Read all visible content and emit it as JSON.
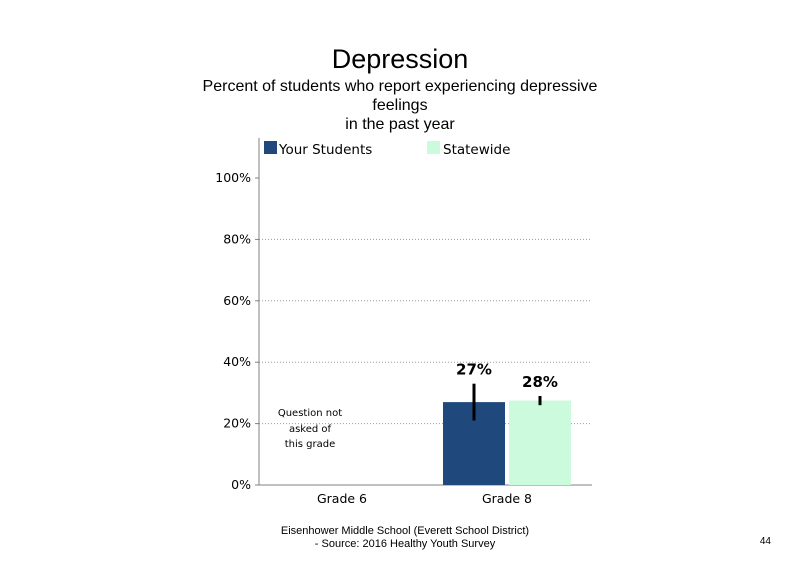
{
  "chart_data": {
    "type": "bar",
    "title": "Depression",
    "subtitle_lines": [
      "Percent of students who report experiencing depressive",
      "feelings",
      "in the past year"
    ],
    "categories": [
      "Grade 6",
      "Grade 8"
    ],
    "series": [
      {
        "name": "Your Students",
        "color": "#1f497d",
        "values": [
          null,
          27
        ],
        "labels": [
          "",
          "27%"
        ],
        "error_low": [
          null,
          21
        ],
        "error_high": [
          null,
          33
        ]
      },
      {
        "name": "Statewide",
        "color": "#ccfadc",
        "values": [
          null,
          27.5
        ],
        "labels": [
          "",
          "28%"
        ],
        "error_low": [
          null,
          26
        ],
        "error_high": [
          null,
          29
        ]
      }
    ],
    "ylim": [
      0,
      100
    ],
    "yticks": [
      "0%",
      "20%",
      "40%",
      "60%",
      "80%",
      "100%"
    ],
    "grid": true,
    "legend": "top",
    "note": [
      "Question not",
      "asked of",
      "this grade"
    ]
  },
  "footer": {
    "line1": "Eisenhower Middle School (Everett School District)",
    "line2": "- Source: 2016 Healthy  Youth Survey"
  },
  "page_number": "44"
}
